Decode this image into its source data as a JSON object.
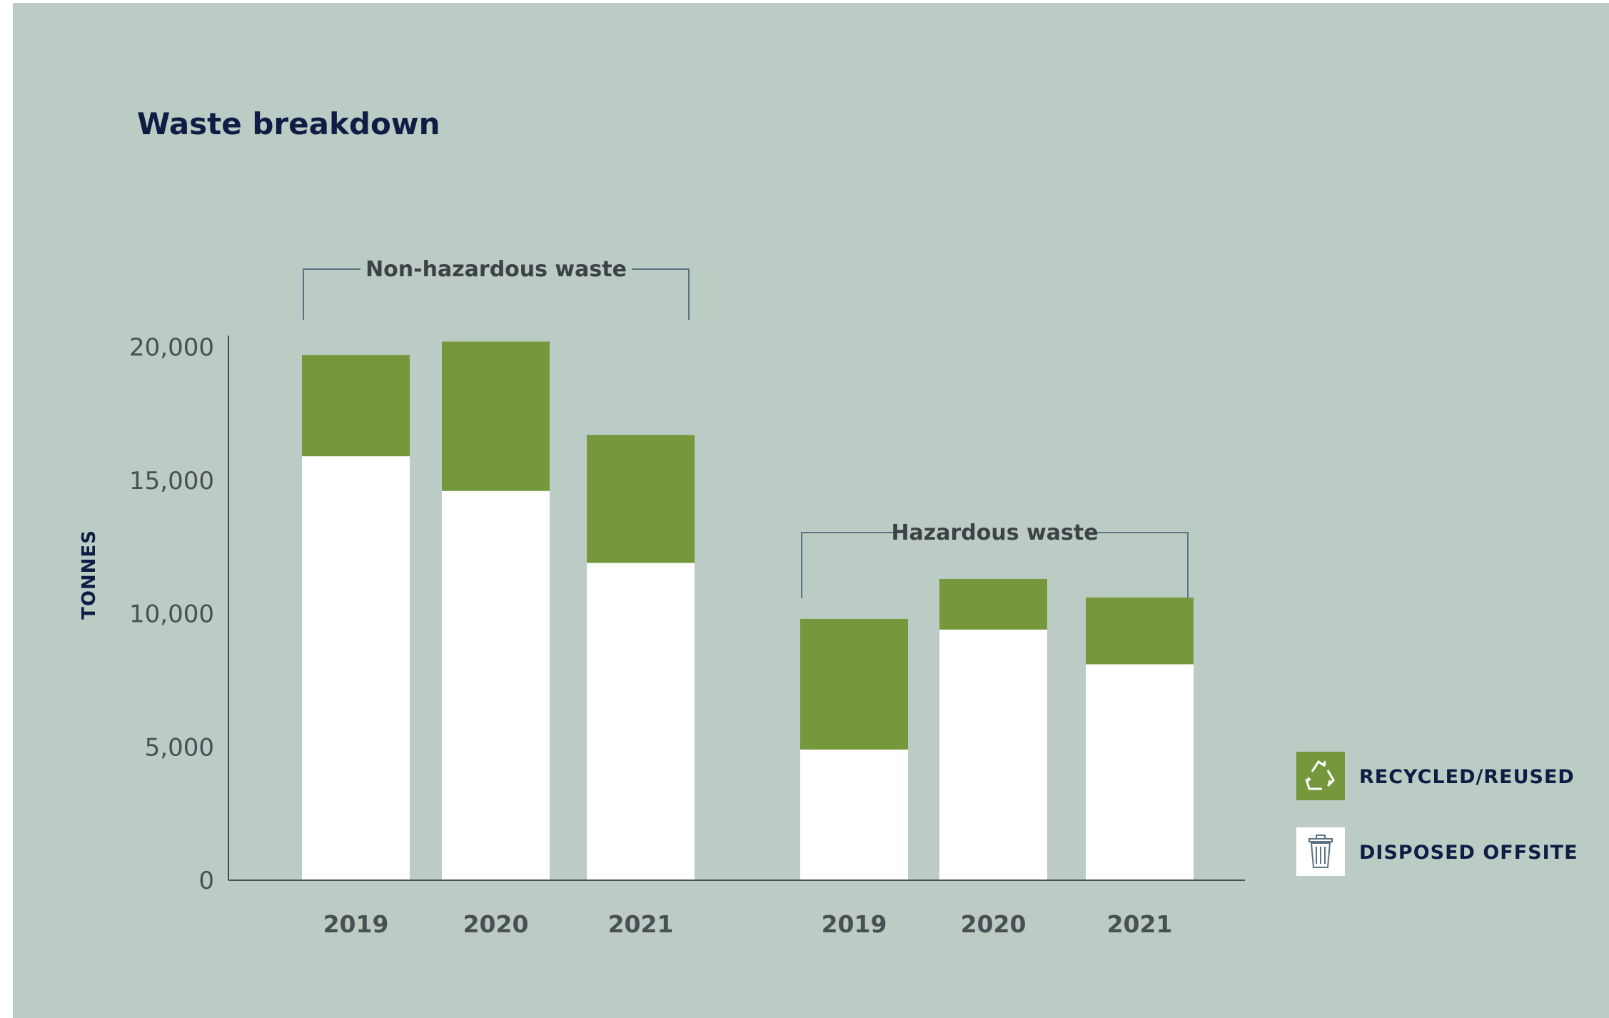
{
  "chart_data": {
    "type": "bar",
    "stacked": true,
    "title": "Waste breakdown",
    "ylabel": "TONNES",
    "xlabel": "",
    "ylim": [
      0,
      20000
    ],
    "yticks": [
      0,
      5000,
      10000,
      15000,
      20000
    ],
    "ytick_labels": [
      "0",
      "5,000",
      "10,000",
      "15,000",
      "20,000"
    ],
    "groups": [
      {
        "label": "Non-hazardous waste",
        "categories": [
          "2019",
          "2020",
          "2021"
        ],
        "series": [
          {
            "name": "DISPOSED OFFSITE",
            "values": [
              15900,
              14600,
              11900
            ]
          },
          {
            "name": "RECYCLED/REUSED",
            "values": [
              3800,
              5600,
              4800
            ]
          }
        ]
      },
      {
        "label": "Hazardous waste",
        "categories": [
          "2019",
          "2020",
          "2021"
        ],
        "series": [
          {
            "name": "DISPOSED OFFSITE",
            "values": [
              4900,
              9400,
              8100
            ]
          },
          {
            "name": "RECYCLED/REUSED",
            "values": [
              4900,
              1900,
              2500
            ]
          }
        ]
      }
    ],
    "legend": {
      "placement": "bottom-right",
      "items": [
        {
          "label": "RECYCLED/REUSED",
          "icon": "recycle-icon",
          "color": "#76983c"
        },
        {
          "label": "DISPOSED OFFSITE",
          "icon": "trash-icon",
          "color": "#ffffff"
        }
      ]
    },
    "colors": {
      "background": "#bccbc4",
      "recycled": "#76983c",
      "disposed": "#ffffff",
      "axis": "#4a4f55",
      "bracket": "#5a7282",
      "title": "#0f1d45"
    },
    "grid": false
  }
}
